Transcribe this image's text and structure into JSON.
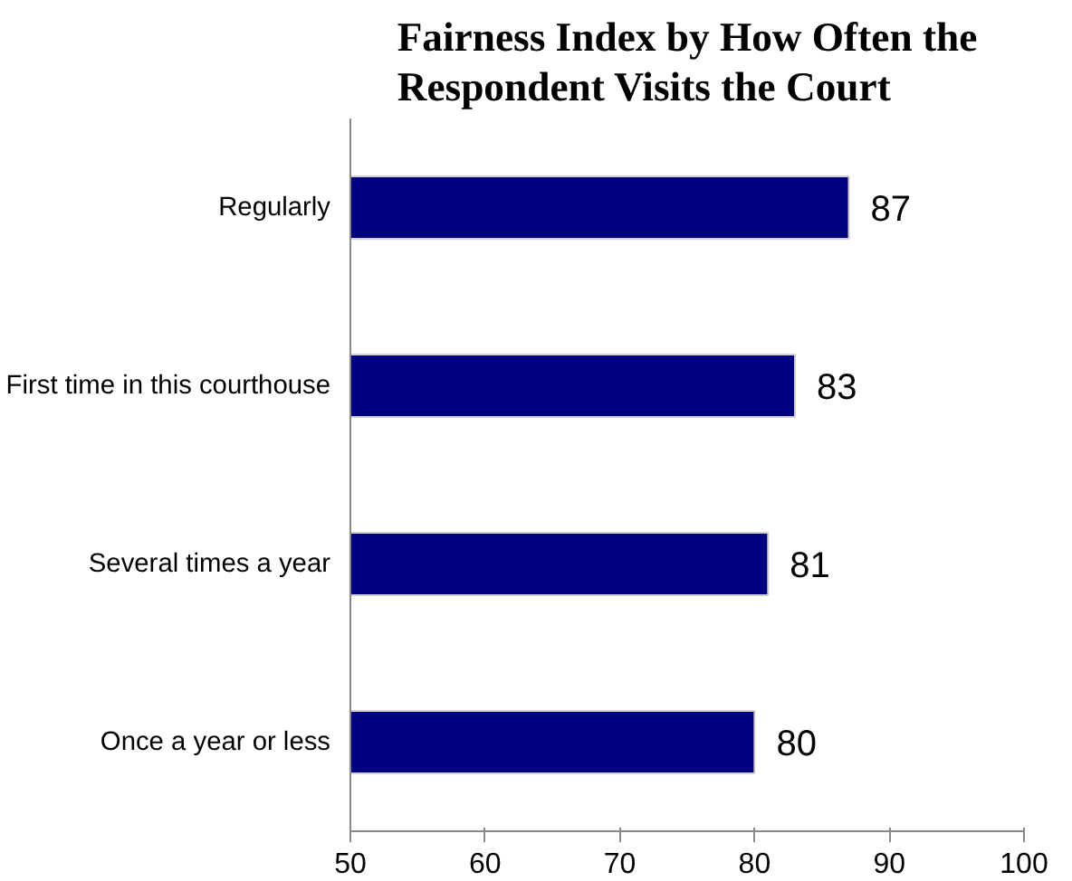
{
  "chart_data": {
    "type": "bar",
    "orientation": "horizontal",
    "title": "Fairness Index by How Often the\nRespondent Visits the Court",
    "categories": [
      "Regularly",
      "First time in this courthouse",
      "Several times a year",
      "Once a year or less"
    ],
    "values": [
      87,
      83,
      81,
      80
    ],
    "color": "#000080",
    "xlim": [
      50,
      100
    ],
    "xticks": [
      50,
      60,
      70,
      80,
      90,
      100
    ],
    "grid": false,
    "data_labels": true
  }
}
